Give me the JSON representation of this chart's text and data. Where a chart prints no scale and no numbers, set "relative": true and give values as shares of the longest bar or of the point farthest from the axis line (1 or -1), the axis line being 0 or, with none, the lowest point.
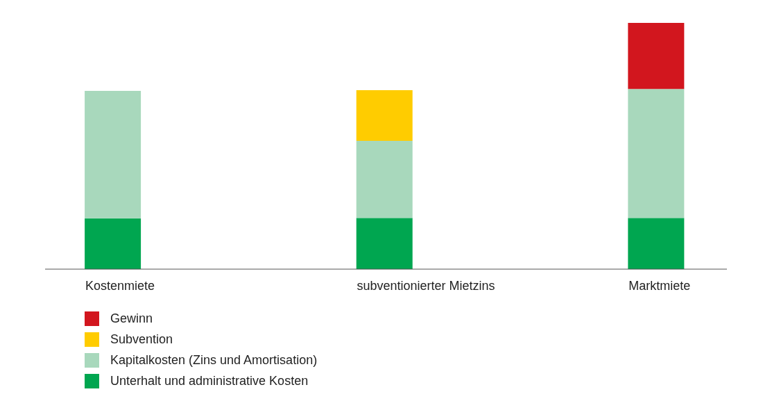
{
  "chart_data": {
    "type": "bar",
    "stacked": true,
    "relative": true,
    "categories": [
      "Kostenmiete",
      "subventionierter Mietzins",
      "Marktmiete"
    ],
    "legend": "bottom left",
    "series": [
      {
        "name": "Unterhalt und administrative Kosten",
        "color": "#00a650",
        "values": [
          0.206,
          0.208,
          0.208
        ]
      },
      {
        "name": "Kapitalkosten (Zins und Amortisation)",
        "color": "#a8d8bc",
        "values": [
          0.518,
          0.313,
          0.524
        ]
      },
      {
        "name": "Subvention",
        "color": "#ffcc00",
        "values": [
          null,
          0.206,
          null
        ]
      },
      {
        "name": "Gewinn",
        "color": "#d2161e",
        "values": [
          null,
          null,
          0.268
        ]
      }
    ]
  }
}
